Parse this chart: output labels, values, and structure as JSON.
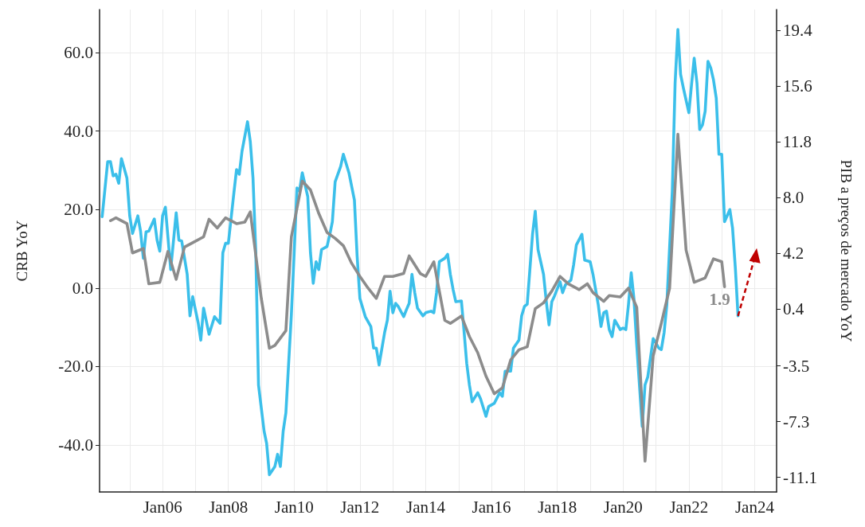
{
  "chart_data": {
    "type": "line",
    "ylabel": "CRB YoY",
    "y2label": "PIB a preços de mercado YoY",
    "xlim": [
      "2004-02",
      "2024-09"
    ],
    "xticks": [
      {
        "value": "2005-01",
        "label": null
      },
      {
        "value": "2006-01",
        "label": "Jan06"
      },
      {
        "value": "2007-01",
        "label": null
      },
      {
        "value": "2008-01",
        "label": "Jan08"
      },
      {
        "value": "2009-01",
        "label": null
      },
      {
        "value": "2010-01",
        "label": "Jan10"
      },
      {
        "value": "2011-01",
        "label": null
      },
      {
        "value": "2012-01",
        "label": "Jan12"
      },
      {
        "value": "2013-01",
        "label": null
      },
      {
        "value": "2014-01",
        "label": "Jan14"
      },
      {
        "value": "2015-01",
        "label": null
      },
      {
        "value": "2016-01",
        "label": "Jan16"
      },
      {
        "value": "2017-01",
        "label": null
      },
      {
        "value": "2018-01",
        "label": "Jan18"
      },
      {
        "value": "2019-01",
        "label": null
      },
      {
        "value": "2020-01",
        "label": "Jan20"
      },
      {
        "value": "2021-01",
        "label": null
      },
      {
        "value": "2022-01",
        "label": "Jan22"
      },
      {
        "value": "2023-01",
        "label": null
      },
      {
        "value": "2024-01",
        "label": "Jan24"
      }
    ],
    "ylim": [
      -52,
      71
    ],
    "yticks": [
      {
        "value": -40,
        "label": "-40.0"
      },
      {
        "value": -20,
        "label": "-20.0"
      },
      {
        "value": 0,
        "label": "0.0"
      },
      {
        "value": 20,
        "label": "20.0"
      },
      {
        "value": 40,
        "label": "40.0"
      },
      {
        "value": 60,
        "label": "60.0"
      }
    ],
    "y2lim": [
      -12.1,
      20.8
    ],
    "y2ticks": [
      -11.1,
      -7.3,
      -3.5,
      0.4,
      4.2,
      {
        "value": 8,
        "label": "8.0"
      },
      11.8,
      15.6,
      19.4
    ],
    "grid": true,
    "marker": "none",
    "line_style": "solid",
    "series": [
      {
        "color": "#3bbfea",
        "axis": "y",
        "x": [
          "2004-03",
          "2004-05",
          "2004-06",
          "2004-07",
          "2004-08",
          "2004-09",
          "2004-10",
          "2004-12",
          "2005-01",
          "2005-02",
          "2005-04",
          "2005-05",
          "2005-06",
          "2005-07",
          "2005-08",
          "2005-10",
          "2005-11",
          "2005-12",
          "2006-01",
          "2006-02",
          "2006-04",
          "2006-06",
          "2006-07",
          "2006-08",
          "2006-10",
          "2006-11",
          "2006-12",
          "2007-02",
          "2007-03",
          "2007-04",
          "2007-06",
          "2007-08",
          "2007-10",
          "2007-11",
          "2007-12",
          "2008-01",
          "2008-03",
          "2008-04",
          "2008-05",
          "2008-06",
          "2008-08",
          "2008-09",
          "2008-10",
          "2008-11",
          "2008-12",
          "2009-02",
          "2009-03",
          "2009-04",
          "2009-06",
          "2009-07",
          "2009-08",
          "2009-09",
          "2009-10",
          "2009-12",
          "2010-01",
          "2010-02",
          "2010-03",
          "2010-04",
          "2010-06",
          "2010-07",
          "2010-08",
          "2010-09",
          "2010-10",
          "2010-11",
          "2011-01",
          "2011-02",
          "2011-03",
          "2011-04",
          "2011-06",
          "2011-07",
          "2011-09",
          "2011-11",
          "2011-12",
          "2012-01",
          "2012-03",
          "2012-05",
          "2012-06",
          "2012-07",
          "2012-08",
          "2012-10",
          "2012-11",
          "2012-12",
          "2013-01",
          "2013-02",
          "2013-03",
          "2013-05",
          "2013-06",
          "2013-07",
          "2013-08",
          "2013-09",
          "2013-10",
          "2013-12",
          "2014-01",
          "2014-03",
          "2014-04",
          "2014-05",
          "2014-06",
          "2014-08",
          "2014-09",
          "2014-10",
          "2014-11",
          "2014-12",
          "2015-02",
          "2015-03",
          "2015-04",
          "2015-05",
          "2015-06",
          "2015-08",
          "2015-09",
          "2015-11",
          "2015-12",
          "2016-02",
          "2016-04",
          "2016-05",
          "2016-06",
          "2016-08",
          "2016-09",
          "2016-11",
          "2016-12",
          "2017-01",
          "2017-02",
          "2017-03",
          "2017-04",
          "2017-05",
          "2017-06",
          "2017-08",
          "2017-09",
          "2017-10",
          "2017-11",
          "2017-12",
          "2018-02",
          "2018-03",
          "2018-04",
          "2018-06",
          "2018-07",
          "2018-08",
          "2018-10",
          "2018-11",
          "2019-01",
          "2019-02",
          "2019-04",
          "2019-05",
          "2019-06",
          "2019-07",
          "2019-08",
          "2019-09",
          "2019-10",
          "2019-12",
          "2020-01",
          "2020-02",
          "2020-03",
          "2020-04",
          "2020-05",
          "2020-06",
          "2020-07",
          "2020-08",
          "2020-09",
          "2020-10",
          "2020-12",
          "2021-02",
          "2021-03",
          "2021-04",
          "2021-05",
          "2021-07",
          "2021-08",
          "2021-09",
          "2021-10",
          "2021-11",
          "2022-01",
          "2022-02",
          "2022-03",
          "2022-04",
          "2022-05",
          "2022-06",
          "2022-07",
          "2022-08",
          "2022-09",
          "2022-10",
          "2022-11",
          "2022-12",
          "2023-01",
          "2023-02",
          "2023-04",
          "2023-05",
          "2023-06",
          "2023-07"
        ],
        "values": [
          18.2,
          32.2,
          32.2,
          28.6,
          29,
          26.7,
          33,
          28,
          18.4,
          13.9,
          18.4,
          14.5,
          7.6,
          14.3,
          14.5,
          17.6,
          12.2,
          9.4,
          18.4,
          20.6,
          4.7,
          19.2,
          12.2,
          12,
          3.5,
          -7.1,
          -2.2,
          -9,
          -13.3,
          -5.1,
          -11.8,
          -7.3,
          -9,
          9,
          11.4,
          11.4,
          23.9,
          30.2,
          29,
          34.9,
          42.4,
          37.3,
          28,
          9,
          -24.7,
          -36.5,
          -39.6,
          -47.6,
          -45.5,
          -42.4,
          -45.5,
          -36.5,
          -31.8,
          -6.7,
          9,
          25.5,
          24.7,
          29.4,
          23.3,
          9,
          1.2,
          6.7,
          4.7,
          9.8,
          10.6,
          13.7,
          16.9,
          27.1,
          31,
          34.1,
          29.4,
          22.4,
          8.2,
          -2.7,
          -7.3,
          -9.8,
          -15.3,
          -15.3,
          -19.6,
          -11.4,
          -8.2,
          -0.8,
          -6.3,
          -3.9,
          -4.7,
          -7.3,
          -5.5,
          -3.9,
          3.5,
          -1.2,
          -5.1,
          -7.1,
          -6.3,
          -5.9,
          -6.3,
          -1.2,
          6.7,
          7.6,
          8.6,
          3.5,
          -0.4,
          -3.5,
          -3.3,
          -10.6,
          -19.2,
          -24.7,
          -29,
          -26.7,
          -28.2,
          -32.7,
          -30.2,
          -29.4,
          -26.7,
          -27.6,
          -21.2,
          -21.2,
          -15.3,
          -13.3,
          -7.1,
          -4.7,
          -4.1,
          4.3,
          13.7,
          19.6,
          9.8,
          3.5,
          -3.5,
          -9.4,
          -3.5,
          -2,
          1.6,
          -1.2,
          0.8,
          2,
          5.9,
          11,
          13.7,
          7.1,
          6.7,
          3.5,
          -4.3,
          -9.8,
          -6.3,
          -5.9,
          -10.6,
          -12.4,
          -8.2,
          -10.6,
          -10.2,
          -10.6,
          -4.3,
          3.9,
          -2.7,
          -14.5,
          -24.7,
          -35.3,
          -24.7,
          -22.7,
          -12.9,
          -15.3,
          -15.7,
          -11.4,
          -4.3,
          24.7,
          52.2,
          65.9,
          54.5,
          51,
          44.7,
          52.2,
          58.6,
          52.2,
          40.4,
          41.6,
          45.1,
          57.8,
          56.1,
          53.1,
          48.4,
          34.1,
          34.1,
          16.9,
          20,
          15.3,
          5.1,
          -7.1
        ]
      },
      {
        "color": "#8c8c8c",
        "axis": "y2",
        "x": [
          "2004-06",
          "2004-08",
          "2004-12",
          "2005-02",
          "2005-06",
          "2005-08",
          "2005-12",
          "2006-03",
          "2006-06",
          "2006-09",
          "2006-12",
          "2007-04",
          "2007-06",
          "2007-09",
          "2007-12",
          "2008-04",
          "2008-07",
          "2008-09",
          "2009-01",
          "2009-04",
          "2009-06",
          "2009-10",
          "2009-12",
          "2010-04",
          "2010-07",
          "2010-10",
          "2011-01",
          "2011-04",
          "2011-07",
          "2011-10",
          "2012-01",
          "2012-04",
          "2012-07",
          "2012-10",
          "2013-01",
          "2013-05",
          "2013-07",
          "2013-11",
          "2014-01",
          "2014-04",
          "2014-08",
          "2014-10",
          "2015-02",
          "2015-05",
          "2015-08",
          "2015-11",
          "2016-02",
          "2016-05",
          "2016-08",
          "2016-11",
          "2017-02",
          "2017-05",
          "2017-08",
          "2017-11",
          "2018-02",
          "2018-05",
          "2018-09",
          "2018-12",
          "2019-02",
          "2019-06",
          "2019-08",
          "2019-12",
          "2020-03",
          "2020-06",
          "2020-09",
          "2020-12",
          "2021-03",
          "2021-06",
          "2021-09",
          "2021-12",
          "2022-03",
          "2022-07",
          "2022-10",
          "2023-01",
          "2023-02"
        ],
        "values": [
          6.4,
          6.6,
          6.2,
          4.2,
          4.5,
          2.1,
          2.2,
          4.3,
          2.4,
          4.6,
          4.9,
          5.3,
          6.5,
          5.9,
          6.6,
          6.2,
          6.3,
          7.0,
          1.1,
          -2.3,
          -2.1,
          -1.1,
          5.3,
          9.1,
          8.5,
          6.9,
          5.6,
          5.2,
          4.7,
          3.5,
          2.6,
          1.8,
          1.1,
          2.6,
          2.6,
          2.8,
          4.0,
          2.8,
          2.6,
          3.6,
          -0.4,
          -0.6,
          -0.1,
          -1.5,
          -2.6,
          -4.2,
          -5.4,
          -5.0,
          -3.1,
          -2.4,
          -2.2,
          0.4,
          0.8,
          1.6,
          2.6,
          2.1,
          1.7,
          2.1,
          1.5,
          0.9,
          1.3,
          1.2,
          1.8,
          0.5,
          -10.0,
          -2.8,
          -0.6,
          1.8,
          12.3,
          4.4,
          2.2,
          2.5,
          3.8,
          3.6,
          1.9
        ],
        "value_labels": [
          null,
          null,
          null,
          null,
          null,
          null,
          null,
          null,
          null,
          null,
          null,
          null,
          null,
          null,
          null,
          null,
          null,
          null,
          null,
          null,
          null,
          null,
          null,
          null,
          null,
          null,
          null,
          null,
          null,
          null,
          null,
          null,
          null,
          null,
          null,
          null,
          null,
          null,
          null,
          null,
          null,
          null,
          null,
          null,
          null,
          null,
          null,
          null,
          null,
          null,
          null,
          null,
          null,
          null,
          null,
          null,
          null,
          null,
          null,
          null,
          null,
          null,
          null,
          null,
          null,
          null,
          null,
          null,
          null,
          null,
          null,
          null,
          null,
          null,
          "1.9"
        ]
      }
    ]
  }
}
